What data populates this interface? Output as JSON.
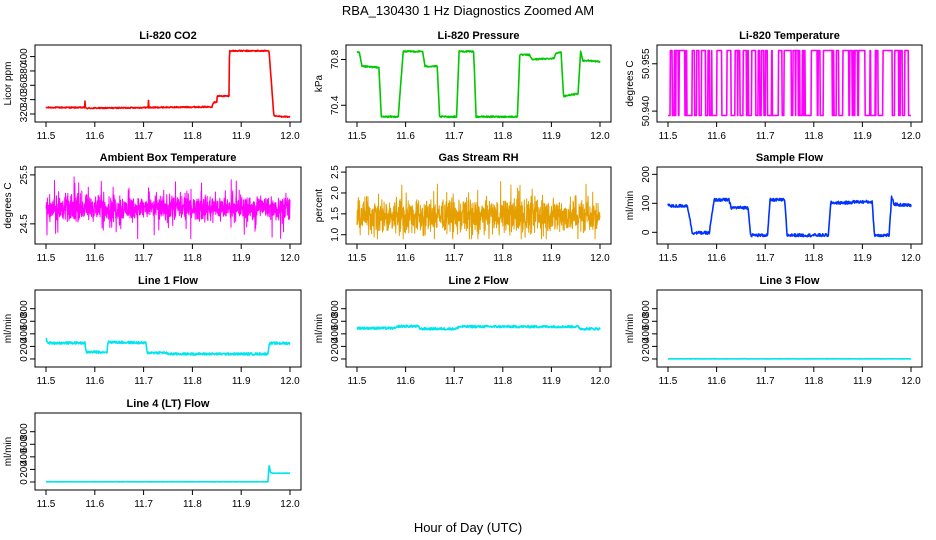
{
  "figure": {
    "title": "RBA_130430  1 Hz Diagnostics Zoomed AM",
    "xlabel": "Hour of Day (UTC)"
  },
  "chart_data": [
    {
      "type": "line",
      "title": "Li-820 CO2",
      "xlabel": "",
      "ylabel": "Licor ppm",
      "xlim": [
        11.5,
        12.0
      ],
      "xticks": [
        "11.5",
        "11.6",
        "11.7",
        "11.8",
        "11.9",
        "12.0"
      ],
      "ylim": [
        313,
        412
      ],
      "yticks": [
        "320",
        "340",
        "360",
        "380",
        "400"
      ],
      "ytick_values": [
        320,
        340,
        360,
        380,
        400
      ],
      "color": "#ff0000",
      "noise": 0.8,
      "spikes": [
        [
          11.58,
          338
        ],
        [
          11.71,
          339
        ]
      ],
      "x": [
        11.5,
        11.58,
        11.581,
        11.84,
        11.843,
        11.85,
        11.851,
        11.875,
        11.876,
        11.957,
        11.967,
        12.0
      ],
      "y": [
        329,
        329,
        328,
        330,
        336,
        337,
        345,
        345,
        408,
        408,
        317,
        316
      ]
    },
    {
      "type": "line",
      "title": "Li-820 Pressure",
      "xlabel": "",
      "ylabel": "kPa",
      "xlim": [
        11.5,
        12.0
      ],
      "xticks": [
        "11.5",
        "11.6",
        "11.7",
        "11.8",
        "11.9",
        "12.0"
      ],
      "ylim": [
        70.28,
        70.9
      ],
      "yticks": [
        "70.4",
        "70.8"
      ],
      "ytick_values": [
        70.4,
        70.8
      ],
      "color": "#00c800",
      "noise": 0.006,
      "x": [
        11.5,
        11.505,
        11.51,
        11.545,
        11.55,
        11.585,
        11.595,
        11.635,
        11.64,
        11.665,
        11.67,
        11.705,
        11.71,
        11.74,
        11.745,
        11.83,
        11.835,
        11.855,
        11.86,
        11.905,
        11.91,
        11.92,
        11.925,
        11.955,
        11.96,
        11.965,
        11.975,
        12.0
      ],
      "y": [
        70.86,
        70.86,
        70.74,
        70.73,
        70.3,
        70.3,
        70.87,
        70.87,
        70.74,
        70.74,
        70.3,
        70.3,
        70.87,
        70.87,
        70.3,
        70.3,
        70.84,
        70.84,
        70.8,
        70.81,
        70.86,
        70.86,
        70.48,
        70.5,
        70.87,
        70.79,
        70.79,
        70.78
      ]
    },
    {
      "type": "line",
      "title": "Li-820 Temperature",
      "xlabel": "",
      "ylabel": "degrees C",
      "xlim": [
        11.5,
        12.0
      ],
      "xticks": [
        "11.5",
        "11.6",
        "11.7",
        "11.8",
        "11.9",
        "12.0"
      ],
      "ylim": [
        50.9375,
        50.96
      ],
      "yticks": [
        "50.940",
        "50.955"
      ],
      "ytick_values": [
        50.94,
        50.955
      ],
      "color": "#ff00ff",
      "mode": "toggle",
      "levels": [
        50.9386,
        50.9592
      ],
      "density": 0.14
    },
    {
      "type": "line",
      "title": "Ambient Box Temperature",
      "xlabel": "",
      "ylabel": "degrees C",
      "xlim": [
        11.5,
        12.0
      ],
      "xticks": [
        "11.5",
        "11.6",
        "11.7",
        "11.8",
        "11.9",
        "12.0"
      ],
      "ylim": [
        24.15,
        25.6
      ],
      "yticks": [
        "24.5",
        "25.5"
      ],
      "ytick_values": [
        24.5,
        25.5
      ],
      "color": "#ff00ff",
      "mode": "noise",
      "mean": 24.82,
      "amp": 0.18,
      "spike": 0.5,
      "lo": 24.2,
      "hi": 25.55
    },
    {
      "type": "line",
      "title": "Gas Stream RH",
      "xlabel": "",
      "ylabel": "percent",
      "xlim": [
        11.5,
        12.0
      ],
      "xticks": [
        "11.5",
        "11.6",
        "11.7",
        "11.8",
        "11.9",
        "12.0"
      ],
      "ylim": [
        0.85,
        2.55
      ],
      "yticks": [
        "1.0",
        "1.5",
        "2.0",
        "2.5"
      ],
      "ytick_values": [
        1.0,
        1.5,
        2.0,
        2.5
      ],
      "color": "#e69f00",
      "mode": "noise",
      "mean": 1.45,
      "amp": 0.28,
      "spike": 0.7,
      "lo": 0.9,
      "hi": 2.5
    },
    {
      "type": "line",
      "title": "Sample Flow",
      "xlabel": "",
      "ylabel": "ml/min",
      "xlim": [
        11.5,
        12.0
      ],
      "xticks": [
        "11.5",
        "11.6",
        "11.7",
        "11.8",
        "11.9",
        "12.0"
      ],
      "ylim": [
        -30,
        215
      ],
      "yticks": [
        "0",
        "100",
        "200"
      ],
      "ytick_values": [
        0,
        100,
        200
      ],
      "color": "#0033ff",
      "noise": 5,
      "x": [
        11.5,
        11.505,
        11.54,
        11.55,
        11.585,
        11.595,
        11.625,
        11.63,
        11.665,
        11.67,
        11.705,
        11.71,
        11.74,
        11.745,
        11.83,
        11.835,
        11.875,
        11.88,
        11.92,
        11.925,
        11.955,
        11.96,
        11.965,
        11.975,
        12.0
      ],
      "y": [
        100,
        90,
        92,
        -2,
        -2,
        112,
        112,
        85,
        85,
        -10,
        -10,
        112,
        112,
        -10,
        -10,
        102,
        102,
        105,
        105,
        -10,
        -10,
        120,
        98,
        95,
        93
      ]
    },
    {
      "type": "line",
      "title": "Line 1 Flow",
      "xlabel": "",
      "ylabel": "ml/min",
      "xlim": [
        11.5,
        12.0
      ],
      "xticks": [
        "11.5",
        "11.6",
        "11.7",
        "11.8",
        "11.9",
        "12.0"
      ],
      "ylim": [
        -80,
        1050
      ],
      "yticks": [
        "0",
        "200",
        "400",
        "600",
        "800"
      ],
      "ytick_values": [
        0,
        200,
        400,
        600,
        800
      ],
      "color": "#00e5ee",
      "noise": 18,
      "x": [
        11.5,
        11.503,
        11.58,
        11.582,
        11.625,
        11.627,
        11.705,
        11.707,
        11.745,
        11.75,
        11.955,
        11.957,
        11.96,
        12.0
      ],
      "y": [
        330,
        255,
        255,
        110,
        110,
        270,
        255,
        100,
        100,
        80,
        80,
        240,
        250,
        250
      ]
    },
    {
      "type": "line",
      "title": "Line 2 Flow",
      "xlabel": "",
      "ylabel": "ml/min",
      "xlim": [
        11.5,
        12.0
      ],
      "xticks": [
        "11.5",
        "11.6",
        "11.7",
        "11.8",
        "11.9",
        "12.0"
      ],
      "ylim": [
        -80,
        1050
      ],
      "yticks": [
        "0",
        "200",
        "400",
        "600",
        "800"
      ],
      "ytick_values": [
        0,
        200,
        400,
        600,
        800
      ],
      "color": "#00e5ee",
      "noise": 18,
      "x": [
        11.5,
        11.58,
        11.585,
        11.625,
        11.63,
        11.705,
        11.71,
        11.955,
        11.96,
        12.0
      ],
      "y": [
        490,
        490,
        520,
        520,
        480,
        480,
        515,
        515,
        480,
        480
      ]
    },
    {
      "type": "line",
      "title": "Line 3 Flow",
      "xlabel": "",
      "ylabel": "ml/min",
      "xlim": [
        11.5,
        12.0
      ],
      "xticks": [
        "11.5",
        "11.6",
        "11.7",
        "11.8",
        "11.9",
        "12.0"
      ],
      "ylim": [
        -80,
        1050
      ],
      "yticks": [
        "0",
        "200",
        "400",
        "600",
        "800"
      ],
      "ytick_values": [
        0,
        200,
        400,
        600,
        800
      ],
      "color": "#00e5ee",
      "noise": 2,
      "x": [
        11.5,
        12.0
      ],
      "y": [
        2,
        2
      ]
    },
    {
      "type": "line",
      "title": "Line 4 (LT) Flow",
      "xlabel": "",
      "ylabel": "ml/min",
      "xlim": [
        11.5,
        12.0
      ],
      "xticks": [
        "11.5",
        "11.6",
        "11.7",
        "11.8",
        "11.9",
        "12.0"
      ],
      "ylim": [
        -80,
        1050
      ],
      "yticks": [
        "0",
        "200",
        "400",
        "600",
        "800"
      ],
      "ytick_values": [
        0,
        200,
        400,
        600,
        800
      ],
      "color": "#00e5ee",
      "noise": 2,
      "x": [
        11.5,
        11.955,
        11.957,
        11.96,
        11.965,
        12.0
      ],
      "y": [
        3,
        3,
        280,
        150,
        140,
        140
      ]
    }
  ]
}
